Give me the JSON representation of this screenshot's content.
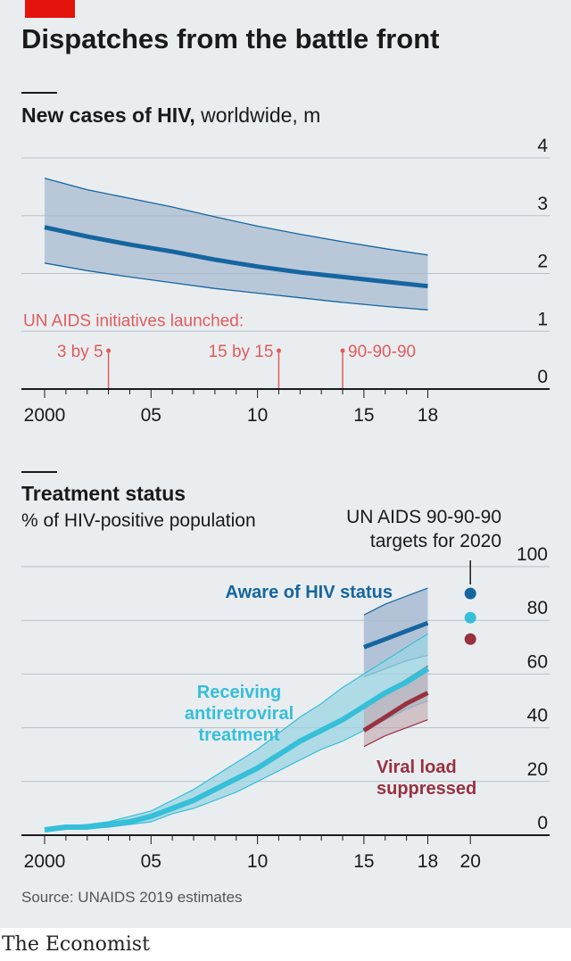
{
  "headline": "Dispatches from the battle front",
  "source": "Source: UNAIDS 2019 estimates",
  "brand": "The Economist",
  "colors": {
    "background": "#e9edf0",
    "accent_red": "#e3120b",
    "band": "#a8bbd2",
    "dark_blue": "#1565a0",
    "cyan": "#35bfd9",
    "crimson": "#983140",
    "initiative_red": "#e05c5c"
  },
  "chart_data": [
    {
      "type": "line",
      "title": "New cases of HIV,",
      "subtitle": "worldwide, m",
      "x": [
        2000,
        2002,
        2004,
        2006,
        2008,
        2010,
        2012,
        2014,
        2016,
        2018
      ],
      "series": [
        {
          "values": [
            2.8,
            2.64,
            2.5,
            2.38,
            2.24,
            2.12,
            2.02,
            1.94,
            1.86,
            1.78
          ]
        }
      ],
      "band_upper": [
        3.65,
        3.45,
        3.3,
        3.15,
        2.98,
        2.82,
        2.68,
        2.55,
        2.43,
        2.32
      ],
      "band_lower": [
        2.18,
        2.05,
        1.94,
        1.84,
        1.74,
        1.66,
        1.58,
        1.5,
        1.43,
        1.37
      ],
      "xlim": [
        2000,
        2021.5
      ],
      "ylim": [
        0,
        4
      ],
      "y_ticks": [
        0,
        1,
        2,
        3,
        4
      ],
      "y_tick_labels": [
        "0",
        "1",
        "2",
        "3",
        "4"
      ],
      "x_tick_labels": [
        {
          "year": 2000,
          "label": "2000"
        },
        {
          "year": 2005,
          "label": "05"
        },
        {
          "year": 2010,
          "label": "10"
        },
        {
          "year": 2015,
          "label": "15"
        },
        {
          "year": 2018,
          "label": "18"
        }
      ],
      "annotation_header": "UN AIDS initiatives launched:",
      "initiatives": [
        {
          "year": 2003,
          "label": "3 by 5",
          "side": "left"
        },
        {
          "year": 2011,
          "label": "15 by 15",
          "side": "left"
        },
        {
          "year": 2014,
          "label": "90-90-90",
          "side": "right"
        }
      ],
      "grid": true
    },
    {
      "type": "line",
      "title": "Treatment status",
      "subtitle": "% of HIV-positive population",
      "targets_note": [
        "UN AIDS 90-90-90",
        "targets for 2020"
      ],
      "xlim": [
        2000,
        2021.5
      ],
      "ylim": [
        0,
        100
      ],
      "y_ticks": [
        0,
        20,
        40,
        60,
        80,
        100
      ],
      "y_tick_labels": [
        "0",
        "20",
        "40",
        "60",
        "80",
        "100"
      ],
      "x_tick_labels": [
        {
          "year": 2000,
          "label": "2000"
        },
        {
          "year": 2005,
          "label": "05"
        },
        {
          "year": 2010,
          "label": "10"
        },
        {
          "year": 2015,
          "label": "15"
        },
        {
          "year": 2018,
          "label": "18"
        },
        {
          "year": 2020,
          "label": "20"
        }
      ],
      "series": [
        {
          "name": "Aware of HIV status",
          "label_lines": [
            "Aware of HIV status"
          ],
          "color": "#1565a0",
          "x": [
            2015,
            2016,
            2017,
            2018
          ],
          "values": [
            70,
            73,
            76,
            79
          ],
          "band_upper": [
            82,
            86,
            89,
            92
          ],
          "band_lower": [
            59,
            62,
            65,
            67
          ],
          "target": 90
        },
        {
          "name": "Receiving antiretroviral treatment",
          "label_lines": [
            "Receiving",
            "antiretroviral",
            "treatment"
          ],
          "color": "#35bfd9",
          "x": [
            2000,
            2001,
            2002,
            2003,
            2004,
            2005,
            2006,
            2007,
            2008,
            2009,
            2010,
            2011,
            2012,
            2013,
            2014,
            2015,
            2016,
            2017,
            2018
          ],
          "values": [
            2,
            3,
            3,
            4,
            5,
            7,
            10,
            13,
            17,
            21,
            25,
            30,
            35,
            39,
            43,
            48,
            53,
            57,
            62
          ],
          "band_upper": [
            2.5,
            3.5,
            4,
            5,
            7,
            9,
            13,
            17,
            22,
            27,
            32,
            38,
            44,
            49,
            55,
            60,
            65,
            70,
            75
          ],
          "band_lower": [
            1.5,
            2.5,
            2.5,
            3,
            4,
            5,
            8,
            10,
            13,
            16,
            20,
            24,
            28,
            32,
            35,
            39,
            43,
            47,
            50
          ],
          "target": 81
        },
        {
          "name": "Viral load suppressed",
          "label_lines": [
            "Viral load",
            "suppressed"
          ],
          "color": "#983140",
          "x": [
            2015,
            2016,
            2017,
            2018
          ],
          "values": [
            39,
            44,
            49,
            53
          ],
          "band_upper": [
            47,
            53,
            58,
            63
          ],
          "band_lower": [
            33,
            37,
            40,
            43
          ],
          "target": 73
        }
      ],
      "grid": true
    }
  ]
}
